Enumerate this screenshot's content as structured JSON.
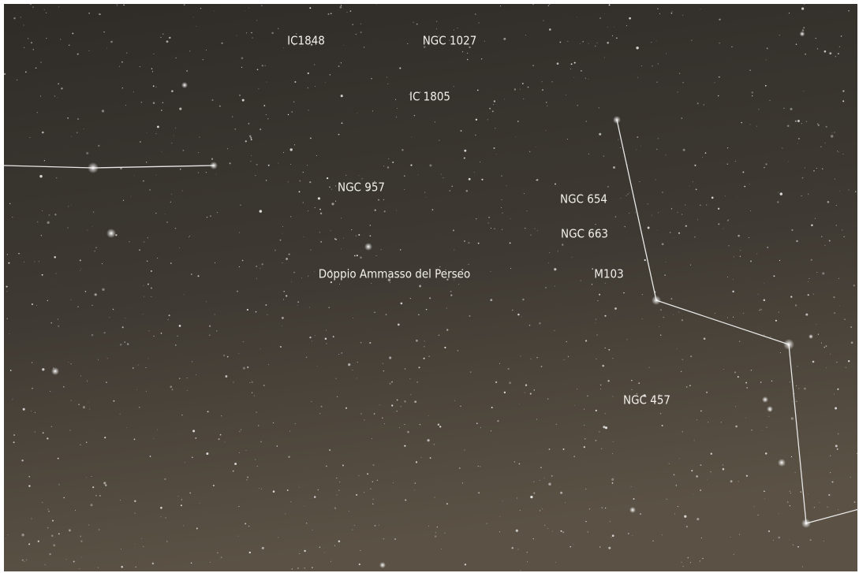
{
  "labels": [
    "IC1848",
    "NGC 1027",
    "IC 1805",
    "NGC 957",
    "NGC 654",
    "NGC 663",
    "Doppio Ammasso del Perseo",
    "M103",
    "NGC 457"
  ]
}
